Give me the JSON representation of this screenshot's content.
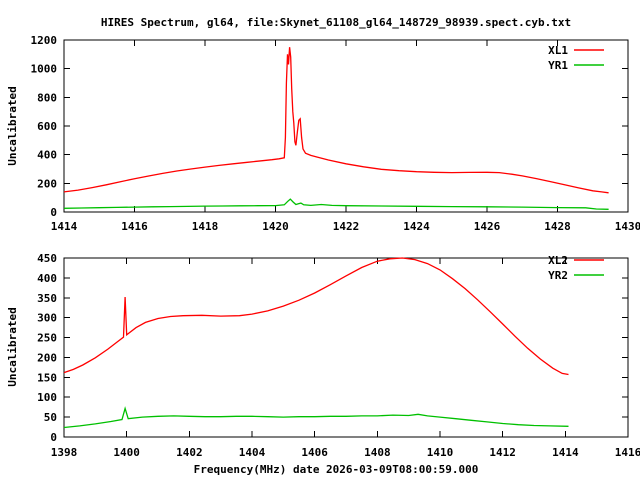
{
  "window": {
    "title": "HIRES Spectrum, gl64, file:Skynet_61108_gl64_148729_98939.spect.cyb.txt"
  },
  "colors": {
    "background": "#ffffff",
    "foreground": "#000000",
    "xl_series": "#ff0000",
    "yr_series": "#00c000"
  },
  "chart_data": [
    {
      "type": "line",
      "title": "HIRES Spectrum, gl64, file:Skynet_61108_gl64_148729_98939.spect.cyb.txt",
      "xlabel": "",
      "ylabel": "Uncalibrated",
      "xlim": [
        1414,
        1430
      ],
      "ylim": [
        0,
        1200
      ],
      "xticks": [
        1414,
        1416,
        1418,
        1420,
        1422,
        1424,
        1426,
        1428,
        1430
      ],
      "yticks": [
        0,
        200,
        400,
        600,
        800,
        1000,
        1200
      ],
      "grid": false,
      "legend_position": "top-right",
      "series": [
        {
          "name": "XL1",
          "color": "#ff0000",
          "points": [
            [
              1414.0,
              140
            ],
            [
              1414.4,
              153
            ],
            [
              1414.8,
              170
            ],
            [
              1415.2,
              190
            ],
            [
              1415.6,
              211
            ],
            [
              1416.0,
              232
            ],
            [
              1416.4,
              251
            ],
            [
              1416.8,
              269
            ],
            [
              1417.2,
              286
            ],
            [
              1417.6,
              300
            ],
            [
              1418.0,
              313
            ],
            [
              1418.4,
              325
            ],
            [
              1418.8,
              336
            ],
            [
              1419.2,
              347
            ],
            [
              1419.6,
              357
            ],
            [
              1419.9,
              365
            ],
            [
              1420.1,
              371
            ],
            [
              1420.25,
              378
            ],
            [
              1420.28,
              520
            ],
            [
              1420.31,
              900
            ],
            [
              1420.34,
              1100
            ],
            [
              1420.37,
              1030
            ],
            [
              1420.4,
              1150
            ],
            [
              1420.43,
              1080
            ],
            [
              1420.46,
              860
            ],
            [
              1420.49,
              700
            ],
            [
              1420.52,
              620
            ],
            [
              1420.55,
              490
            ],
            [
              1420.58,
              465
            ],
            [
              1420.62,
              560
            ],
            [
              1420.66,
              640
            ],
            [
              1420.7,
              650
            ],
            [
              1420.74,
              520
            ],
            [
              1420.78,
              440
            ],
            [
              1420.85,
              410
            ],
            [
              1421.0,
              395
            ],
            [
              1421.2,
              382
            ],
            [
              1421.5,
              363
            ],
            [
              1422.0,
              336
            ],
            [
              1422.5,
              315
            ],
            [
              1423.0,
              298
            ],
            [
              1423.5,
              288
            ],
            [
              1424.0,
              281
            ],
            [
              1424.5,
              277
            ],
            [
              1425.0,
              275
            ],
            [
              1425.5,
              276
            ],
            [
              1426.0,
              277
            ],
            [
              1426.35,
              275
            ],
            [
              1426.7,
              264
            ],
            [
              1427.0,
              252
            ],
            [
              1427.4,
              233
            ],
            [
              1427.8,
              212
            ],
            [
              1428.2,
              190
            ],
            [
              1428.6,
              168
            ],
            [
              1429.0,
              148
            ],
            [
              1429.25,
              140
            ],
            [
              1429.45,
              134
            ]
          ]
        },
        {
          "name": "YR1",
          "color": "#00c000",
          "points": [
            [
              1414.0,
              26
            ],
            [
              1414.5,
              28
            ],
            [
              1415.0,
              30
            ],
            [
              1415.5,
              32
            ],
            [
              1416.0,
              34
            ],
            [
              1416.5,
              36
            ],
            [
              1417.0,
              38
            ],
            [
              1417.5,
              39
            ],
            [
              1418.0,
              41
            ],
            [
              1418.5,
              42
            ],
            [
              1419.0,
              43
            ],
            [
              1419.5,
              44
            ],
            [
              1420.0,
              45
            ],
            [
              1420.25,
              50
            ],
            [
              1420.35,
              75
            ],
            [
              1420.42,
              90
            ],
            [
              1420.5,
              70
            ],
            [
              1420.58,
              52
            ],
            [
              1420.65,
              58
            ],
            [
              1420.72,
              62
            ],
            [
              1420.8,
              50
            ],
            [
              1421.0,
              46
            ],
            [
              1421.3,
              52
            ],
            [
              1421.6,
              46
            ],
            [
              1422.0,
              44
            ],
            [
              1423.0,
              42
            ],
            [
              1424.0,
              40
            ],
            [
              1425.0,
              38
            ],
            [
              1426.0,
              36
            ],
            [
              1427.0,
              34
            ],
            [
              1428.0,
              31
            ],
            [
              1428.8,
              29
            ],
            [
              1429.1,
              21
            ],
            [
              1429.45,
              19
            ]
          ]
        }
      ]
    },
    {
      "type": "line",
      "title": "",
      "xlabel": "Frequency(MHz) date 2026-03-09T08:00:59.000",
      "ylabel": "Uncalibrated",
      "xlim": [
        1398,
        1416
      ],
      "ylim": [
        0,
        450
      ],
      "xticks": [
        1398,
        1400,
        1402,
        1404,
        1406,
        1408,
        1410,
        1412,
        1414,
        1416
      ],
      "yticks": [
        0,
        50,
        100,
        150,
        200,
        250,
        300,
        350,
        400,
        450
      ],
      "grid": false,
      "legend_position": "top-right",
      "series": [
        {
          "name": "XL2",
          "color": "#ff0000",
          "points": [
            [
              1398.0,
              162
            ],
            [
              1398.3,
              170
            ],
            [
              1398.6,
              181
            ],
            [
              1399.0,
              199
            ],
            [
              1399.4,
              221
            ],
            [
              1399.7,
              239
            ],
            [
              1399.9,
              251
            ],
            [
              1399.95,
              352
            ],
            [
              1400.0,
              257
            ],
            [
              1400.3,
              275
            ],
            [
              1400.6,
              288
            ],
            [
              1401.0,
              298
            ],
            [
              1401.4,
              303
            ],
            [
              1401.8,
              305
            ],
            [
              1402.4,
              306
            ],
            [
              1403.0,
              304
            ],
            [
              1403.6,
              305
            ],
            [
              1404.0,
              309
            ],
            [
              1404.5,
              317
            ],
            [
              1405.0,
              329
            ],
            [
              1405.5,
              344
            ],
            [
              1406.0,
              362
            ],
            [
              1406.5,
              383
            ],
            [
              1407.0,
              405
            ],
            [
              1407.5,
              426
            ],
            [
              1408.0,
              442
            ],
            [
              1408.4,
              448
            ],
            [
              1408.8,
              450
            ],
            [
              1409.2,
              446
            ],
            [
              1409.6,
              436
            ],
            [
              1410.0,
              420
            ],
            [
              1410.4,
              398
            ],
            [
              1410.8,
              373
            ],
            [
              1411.2,
              345
            ],
            [
              1411.6,
              315
            ],
            [
              1412.0,
              284
            ],
            [
              1412.4,
              253
            ],
            [
              1412.8,
              223
            ],
            [
              1413.2,
              196
            ],
            [
              1413.6,
              173
            ],
            [
              1413.9,
              160
            ],
            [
              1414.1,
              157
            ]
          ]
        },
        {
          "name": "YR2",
          "color": "#00c000",
          "points": [
            [
              1398.0,
              24
            ],
            [
              1398.5,
              28
            ],
            [
              1399.0,
              33
            ],
            [
              1399.5,
              39
            ],
            [
              1399.85,
              44
            ],
            [
              1399.95,
              72
            ],
            [
              1400.05,
              46
            ],
            [
              1400.5,
              50
            ],
            [
              1401.0,
              52
            ],
            [
              1401.5,
              53
            ],
            [
              1402.0,
              52
            ],
            [
              1402.5,
              51
            ],
            [
              1403.0,
              51
            ],
            [
              1403.5,
              52
            ],
            [
              1404.0,
              52
            ],
            [
              1404.5,
              51
            ],
            [
              1405.0,
              50
            ],
            [
              1405.5,
              51
            ],
            [
              1406.0,
              51
            ],
            [
              1406.5,
              52
            ],
            [
              1407.0,
              52
            ],
            [
              1407.5,
              53
            ],
            [
              1408.0,
              53
            ],
            [
              1408.5,
              55
            ],
            [
              1409.0,
              54
            ],
            [
              1409.3,
              57
            ],
            [
              1409.6,
              53
            ],
            [
              1410.0,
              50
            ],
            [
              1410.5,
              46
            ],
            [
              1411.0,
              42
            ],
            [
              1411.5,
              38
            ],
            [
              1412.0,
              34
            ],
            [
              1412.5,
              31
            ],
            [
              1413.0,
              29
            ],
            [
              1413.5,
              28
            ],
            [
              1414.1,
              27
            ]
          ]
        }
      ]
    }
  ]
}
